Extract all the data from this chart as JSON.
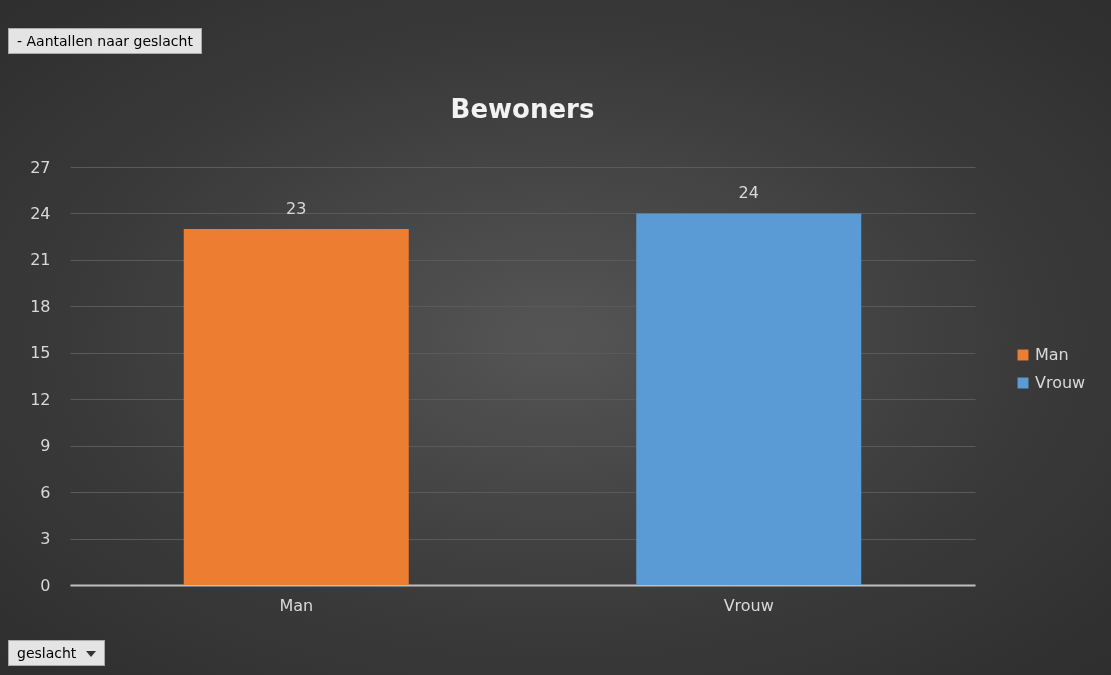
{
  "chart_data": {
    "type": "bar",
    "title": "Bewoners",
    "categories": [
      "Man",
      "Vrouw"
    ],
    "series": [
      {
        "name": "Man",
        "color": "#ed7d31",
        "values": [
          23,
          null
        ]
      },
      {
        "name": "Vrouw",
        "color": "#5b9bd5",
        "values": [
          null,
          24
        ]
      }
    ],
    "ylim": [
      0,
      27
    ],
    "yticks": [
      0,
      3,
      6,
      9,
      12,
      15,
      18,
      21,
      24,
      27
    ],
    "grid": "y",
    "legend": "right",
    "data_labels": true,
    "annotations": [
      "- Aantallen naar geslacht",
      "geslacht"
    ]
  }
}
